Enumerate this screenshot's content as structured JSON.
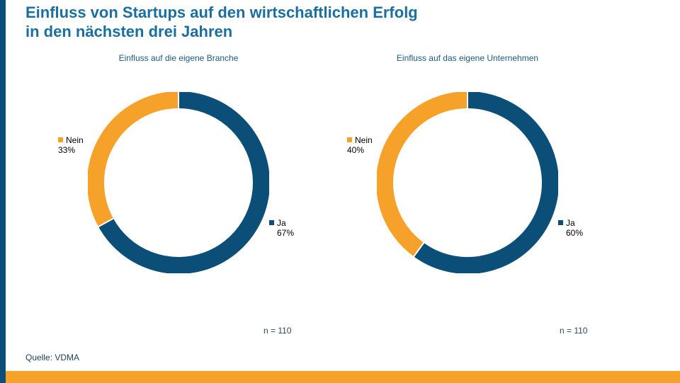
{
  "title_line1": "Einfluss von Startups auf den wirtschaftlichen Erfolg",
  "title_line2": "in den nächsten drei Jahren",
  "source": "Quelle: VDMA",
  "colors": {
    "ja": "#0b4f78",
    "nein": "#f6a22a",
    "title": "#1a6fa0",
    "bottom_bar": "#f6a22a",
    "left_bar": "#0b4f78"
  },
  "chart_data": [
    {
      "type": "pie",
      "title": "Einfluss auf die eigene Branche",
      "labels": [
        "Ja",
        "Nein"
      ],
      "values": [
        67,
        33
      ],
      "value_labels": [
        "67%",
        "33%"
      ],
      "note": "n = 110"
    },
    {
      "type": "pie",
      "title": "Einfluss auf das eigene Unternehmen",
      "labels": [
        "Ja",
        "Nein"
      ],
      "values": [
        60,
        40
      ],
      "value_labels": [
        "60%",
        "40%"
      ],
      "note": "n = 110"
    }
  ]
}
